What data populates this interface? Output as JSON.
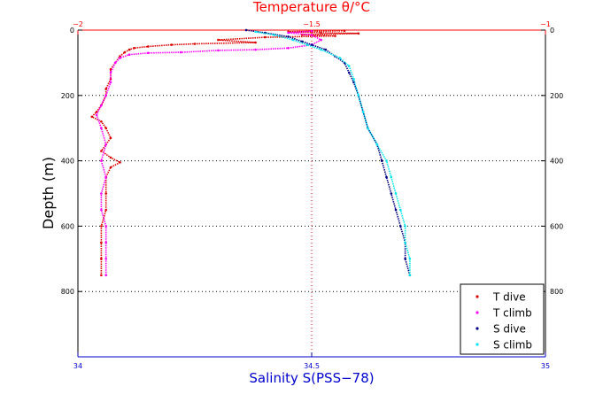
{
  "colors": {
    "axis_black": "#000000",
    "temp_axis": "#ff0000",
    "sal_axis": "#0000cc",
    "grid_depth": "#000000",
    "grid_temp": "#ff0000",
    "t_dive": "#dd0000",
    "t_climb": "#ff00ff",
    "s_dive": "#000080",
    "s_climb": "#00e5ee"
  },
  "chart_data": {
    "type": "scatter",
    "title_top": "Temperature θ/°C",
    "xlabel_bottom": "Salinity S(PSS−78)",
    "ylabel": "Depth (m)",
    "temp_axis": {
      "range": [
        -2,
        -1
      ],
      "ticks": [
        -2,
        -1.5,
        -1
      ],
      "tick_labels": [
        "−2",
        "−1.5",
        "−1"
      ]
    },
    "sal_axis": {
      "range": [
        34,
        35
      ],
      "ticks": [
        34,
        34.5,
        35
      ],
      "tick_labels": [
        "34",
        "34.5",
        "35"
      ]
    },
    "depth_axis": {
      "range": [
        0,
        1000
      ],
      "reversed": true,
      "ticks": [
        0,
        200,
        400,
        600,
        800
      ],
      "tick_labels": [
        "0",
        "200",
        "400",
        "600",
        "800"
      ]
    },
    "grid": {
      "depth_dotted_at": [
        200,
        400,
        600,
        800
      ],
      "temp_dotted_at": [
        -1.5
      ]
    },
    "legend": {
      "location": "bottom-right",
      "entries": [
        {
          "label": "T dive",
          "color": "#dd0000"
        },
        {
          "label": "T climb",
          "color": "#ff00ff"
        },
        {
          "label": "S dive",
          "color": "#000080"
        },
        {
          "label": "S climb",
          "color": "#00e5ee"
        }
      ]
    },
    "series": [
      {
        "name": "T dive",
        "axis": "temperature",
        "color": "#dd0000",
        "points": [
          [
            -1.43,
            2
          ],
          [
            -1.55,
            5
          ],
          [
            -1.48,
            8
          ],
          [
            -1.4,
            10
          ],
          [
            -1.52,
            14
          ],
          [
            -1.45,
            18
          ],
          [
            -1.6,
            22
          ],
          [
            -1.7,
            30
          ],
          [
            -1.62,
            38
          ],
          [
            -1.75,
            42
          ],
          [
            -1.8,
            45
          ],
          [
            -1.85,
            50
          ],
          [
            -1.88,
            55
          ],
          [
            -1.89,
            60
          ],
          [
            -1.9,
            68
          ],
          [
            -1.91,
            80
          ],
          [
            -1.92,
            100
          ],
          [
            -1.93,
            120
          ],
          [
            -1.93,
            150
          ],
          [
            -1.94,
            180
          ],
          [
            -1.94,
            200
          ],
          [
            -1.95,
            230
          ],
          [
            -1.96,
            250
          ],
          [
            -1.97,
            265
          ],
          [
            -1.95,
            280
          ],
          [
            -1.94,
            300
          ],
          [
            -1.93,
            330
          ],
          [
            -1.94,
            350
          ],
          [
            -1.95,
            370
          ],
          [
            -1.93,
            390
          ],
          [
            -1.91,
            405
          ],
          [
            -1.93,
            420
          ],
          [
            -1.94,
            450
          ],
          [
            -1.94,
            500
          ],
          [
            -1.94,
            550
          ],
          [
            -1.95,
            600
          ],
          [
            -1.95,
            650
          ],
          [
            -1.95,
            700
          ],
          [
            -1.95,
            750
          ]
        ]
      },
      {
        "name": "T climb",
        "axis": "temperature",
        "color": "#ff00ff",
        "points": [
          [
            -1.94,
            750
          ],
          [
            -1.94,
            700
          ],
          [
            -1.94,
            650
          ],
          [
            -1.94,
            600
          ],
          [
            -1.95,
            550
          ],
          [
            -1.95,
            500
          ],
          [
            -1.94,
            450
          ],
          [
            -1.95,
            400
          ],
          [
            -1.94,
            350
          ],
          [
            -1.95,
            300
          ],
          [
            -1.96,
            260
          ],
          [
            -1.95,
            230
          ],
          [
            -1.94,
            200
          ],
          [
            -1.93,
            160
          ],
          [
            -1.93,
            130
          ],
          [
            -1.92,
            100
          ],
          [
            -1.91,
            85
          ],
          [
            -1.89,
            75
          ],
          [
            -1.85,
            70
          ],
          [
            -1.78,
            68
          ],
          [
            -1.7,
            62
          ],
          [
            -1.62,
            60
          ],
          [
            -1.55,
            55
          ],
          [
            -1.5,
            45
          ],
          [
            -1.48,
            30
          ],
          [
            -1.5,
            15
          ],
          [
            -1.55,
            8
          ],
          [
            -1.5,
            3
          ]
        ]
      },
      {
        "name": "S dive",
        "axis": "salinity",
        "color": "#000080",
        "points": [
          [
            34.36,
            0
          ],
          [
            34.4,
            8
          ],
          [
            34.45,
            20
          ],
          [
            34.48,
            35
          ],
          [
            34.5,
            45
          ],
          [
            34.53,
            60
          ],
          [
            34.55,
            80
          ],
          [
            34.57,
            100
          ],
          [
            34.58,
            130
          ],
          [
            34.59,
            160
          ],
          [
            34.6,
            200
          ],
          [
            34.61,
            250
          ],
          [
            34.62,
            300
          ],
          [
            34.64,
            350
          ],
          [
            34.65,
            400
          ],
          [
            34.66,
            450
          ],
          [
            34.67,
            500
          ],
          [
            34.68,
            550
          ],
          [
            34.69,
            600
          ],
          [
            34.7,
            650
          ],
          [
            34.7,
            700
          ],
          [
            34.71,
            750
          ]
        ]
      },
      {
        "name": "S climb",
        "axis": "salinity",
        "color": "#00e5ee",
        "points": [
          [
            34.71,
            750
          ],
          [
            34.71,
            700
          ],
          [
            34.7,
            650
          ],
          [
            34.7,
            600
          ],
          [
            34.69,
            550
          ],
          [
            34.68,
            500
          ],
          [
            34.67,
            450
          ],
          [
            34.66,
            400
          ],
          [
            34.64,
            350
          ],
          [
            34.62,
            300
          ],
          [
            34.61,
            250
          ],
          [
            34.6,
            200
          ],
          [
            34.59,
            150
          ],
          [
            34.58,
            110
          ],
          [
            34.56,
            85
          ],
          [
            34.52,
            60
          ],
          [
            34.49,
            45
          ],
          [
            34.46,
            30
          ],
          [
            34.42,
            15
          ],
          [
            34.38,
            5
          ]
        ]
      }
    ]
  }
}
